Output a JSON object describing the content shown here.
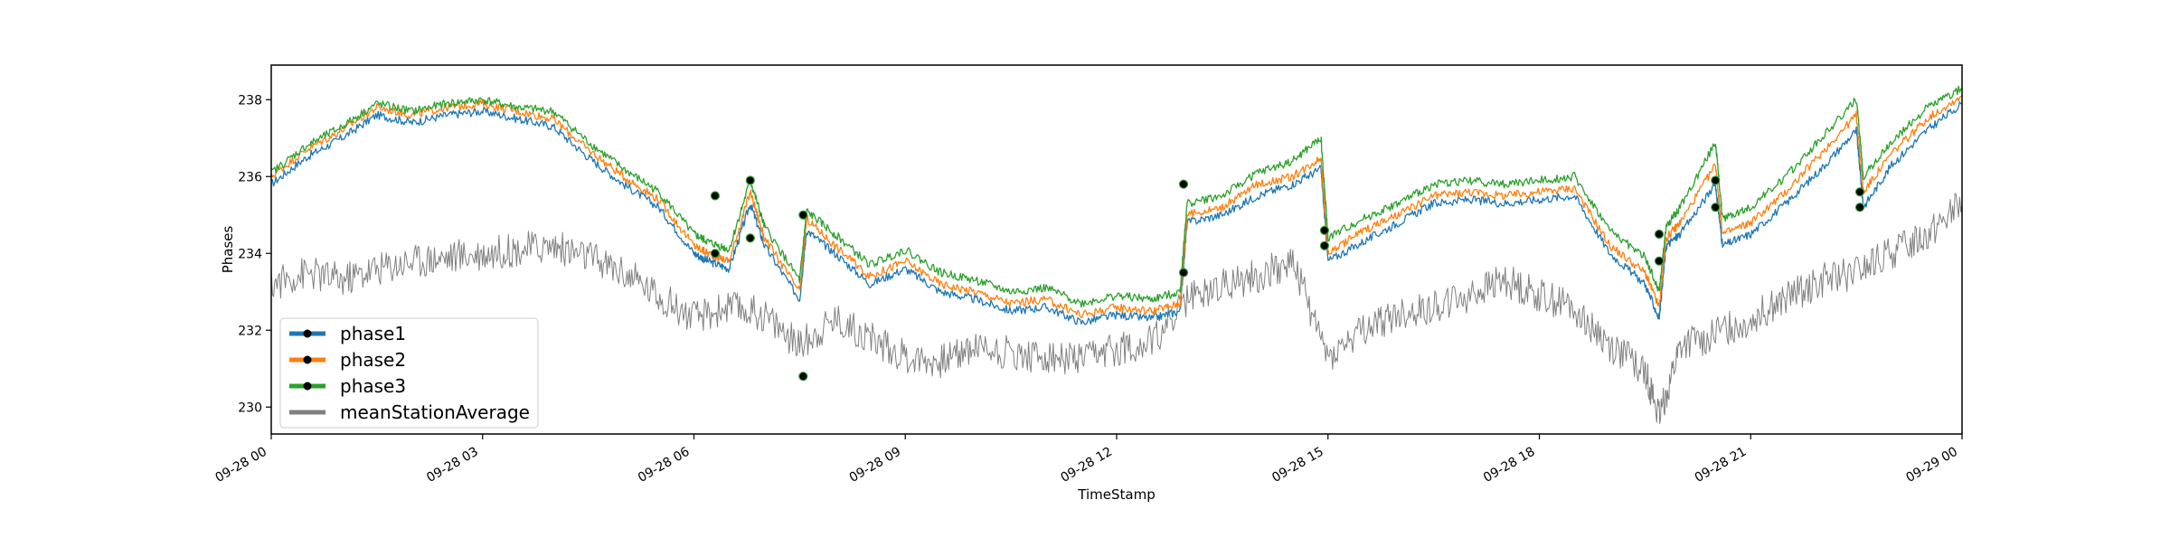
{
  "chart_data": {
    "type": "line",
    "title": "",
    "xlabel": "TimeStamp",
    "ylabel": "Phases",
    "x_range": [
      "09-28 00",
      "09-29 00"
    ],
    "ylim": [
      229.3,
      238.9
    ],
    "x_ticks": [
      "09-28 00",
      "09-28 03",
      "09-28 06",
      "09-28 09",
      "09-28 12",
      "09-28 15",
      "09-28 18",
      "09-28 21",
      "09-29 00"
    ],
    "y_ticks": [
      230,
      232,
      234,
      236,
      238
    ],
    "grid": false,
    "legend_position": "lower-left",
    "series": [
      {
        "name": "phase1",
        "color": "#1f77b4",
        "x_hours": [
          0,
          0.5,
          1,
          1.5,
          2,
          2.5,
          3,
          3.5,
          4,
          4.5,
          5,
          5.5,
          6,
          6.2,
          6.5,
          6.8,
          7,
          7.5,
          7.6,
          8,
          8.5,
          9,
          9.5,
          10,
          10.5,
          11,
          11.5,
          12,
          12.5,
          12.9,
          13,
          13.5,
          14,
          14.5,
          14.9,
          15,
          15.5,
          16,
          16.5,
          17,
          17.5,
          18,
          18.5,
          19,
          19.5,
          19.7,
          19.8,
          20,
          20.5,
          20.6,
          21,
          21.5,
          22,
          22.5,
          22.6,
          23,
          23.5,
          24
        ],
        "values": [
          235.8,
          236.5,
          237.0,
          237.6,
          237.4,
          237.6,
          237.7,
          237.5,
          237.3,
          236.5,
          235.8,
          235.2,
          234.0,
          233.8,
          233.6,
          235.3,
          234.2,
          232.8,
          234.6,
          234.0,
          233.2,
          233.6,
          233.0,
          232.8,
          232.5,
          232.6,
          232.2,
          232.4,
          232.3,
          232.5,
          234.8,
          235.0,
          235.5,
          235.8,
          236.2,
          233.8,
          234.3,
          234.8,
          235.3,
          235.4,
          235.3,
          235.4,
          235.5,
          234.0,
          233.2,
          232.3,
          234.2,
          234.5,
          235.8,
          234.2,
          234.5,
          235.3,
          236.2,
          237.2,
          235.2,
          236.3,
          237.2,
          237.9
        ]
      },
      {
        "name": "phase2",
        "color": "#ff7f0e",
        "x_hours": [
          0,
          0.5,
          1,
          1.5,
          2,
          2.5,
          3,
          3.5,
          4,
          4.5,
          5,
          5.5,
          6,
          6.2,
          6.5,
          6.8,
          7,
          7.5,
          7.6,
          8,
          8.5,
          9,
          9.5,
          10,
          10.5,
          11,
          11.5,
          12,
          12.5,
          12.9,
          13,
          13.5,
          14,
          14.5,
          14.9,
          15,
          15.5,
          16,
          16.5,
          17,
          17.5,
          18,
          18.5,
          19,
          19.5,
          19.7,
          19.8,
          20,
          20.5,
          20.6,
          21,
          21.5,
          22,
          22.5,
          22.6,
          23,
          23.5,
          24
        ],
        "values": [
          236.0,
          236.7,
          237.2,
          237.8,
          237.6,
          237.8,
          237.9,
          237.7,
          237.5,
          236.7,
          236.0,
          235.4,
          234.2,
          234.0,
          233.8,
          235.6,
          234.4,
          233.0,
          234.9,
          234.2,
          233.4,
          233.8,
          233.2,
          233.0,
          232.7,
          232.8,
          232.4,
          232.6,
          232.5,
          232.7,
          235.0,
          235.2,
          235.8,
          236.0,
          236.5,
          234.0,
          234.6,
          235.0,
          235.5,
          235.6,
          235.5,
          235.6,
          235.7,
          234.2,
          233.5,
          232.6,
          234.4,
          234.8,
          236.3,
          234.5,
          234.8,
          235.6,
          236.6,
          237.6,
          235.6,
          236.6,
          237.5,
          238.1
        ]
      },
      {
        "name": "phase3",
        "color": "#2ca02c",
        "x_hours": [
          0,
          0.5,
          1,
          1.5,
          2,
          2.5,
          3,
          3.5,
          4,
          4.5,
          5,
          5.5,
          6,
          6.2,
          6.5,
          6.8,
          7,
          7.5,
          7.6,
          8,
          8.5,
          9,
          9.5,
          10,
          10.5,
          11,
          11.5,
          12,
          12.5,
          12.9,
          13,
          13.5,
          14,
          14.5,
          14.9,
          15,
          15.5,
          16,
          16.5,
          17,
          17.5,
          18,
          18.5,
          19,
          19.5,
          19.7,
          19.8,
          20,
          20.5,
          20.6,
          21,
          21.5,
          22,
          22.5,
          22.6,
          23,
          23.5,
          24
        ],
        "values": [
          236.1,
          236.8,
          237.3,
          237.9,
          237.7,
          237.9,
          238.0,
          237.8,
          237.7,
          236.9,
          236.2,
          235.6,
          234.5,
          234.3,
          234.1,
          235.9,
          234.7,
          233.3,
          235.1,
          234.5,
          233.7,
          234.1,
          233.5,
          233.3,
          233.0,
          233.1,
          232.7,
          232.9,
          232.8,
          233.0,
          235.3,
          235.5,
          236.1,
          236.4,
          237.0,
          234.4,
          234.9,
          235.3,
          235.8,
          235.9,
          235.8,
          235.9,
          236.0,
          234.6,
          233.9,
          233.0,
          234.7,
          235.2,
          236.9,
          234.9,
          235.2,
          236.0,
          237.0,
          238.0,
          236.0,
          236.9,
          237.8,
          238.3
        ]
      },
      {
        "name": "meanStationAverage",
        "color": "#808080",
        "x_hours": [
          0,
          0.5,
          1,
          1.5,
          2,
          2.5,
          3,
          3.5,
          4,
          4.5,
          5,
          5.5,
          6,
          6.5,
          7,
          7.5,
          8,
          8.5,
          9,
          9.5,
          10,
          10.5,
          11,
          11.5,
          12,
          12.5,
          13,
          13.5,
          14,
          14.5,
          15,
          15.5,
          16,
          16.5,
          17,
          17.5,
          18,
          18.5,
          19,
          19.5,
          19.7,
          20,
          20.5,
          21,
          21.5,
          22,
          22.5,
          23,
          23.5,
          24
        ],
        "values": [
          233.2,
          233.5,
          233.3,
          233.6,
          233.8,
          233.9,
          234.0,
          234.1,
          234.2,
          233.9,
          233.5,
          232.9,
          232.3,
          232.6,
          232.4,
          231.6,
          232.3,
          231.8,
          231.3,
          231.2,
          231.6,
          231.4,
          231.3,
          231.2,
          231.5,
          231.7,
          232.8,
          233.2,
          233.4,
          233.8,
          231.3,
          232.0,
          232.4,
          232.6,
          232.9,
          233.3,
          232.9,
          232.6,
          231.6,
          231.0,
          229.7,
          231.6,
          231.9,
          232.3,
          232.8,
          233.3,
          233.5,
          234.0,
          234.5,
          235.3
        ]
      }
    ],
    "marker_points": {
      "description": "",
      "x_hours": [
        6.3,
        6.3,
        6.8,
        6.8,
        7.55,
        7.55,
        12.95,
        12.95,
        14.95,
        14.95,
        19.7,
        19.7,
        20.5,
        20.5,
        22.55,
        22.55
      ],
      "values": [
        235.5,
        234.0,
        235.9,
        234.4,
        235.0,
        230.8,
        235.8,
        233.5,
        234.6,
        234.2,
        234.5,
        233.8,
        235.9,
        235.2,
        235.6,
        235.2
      ]
    }
  }
}
